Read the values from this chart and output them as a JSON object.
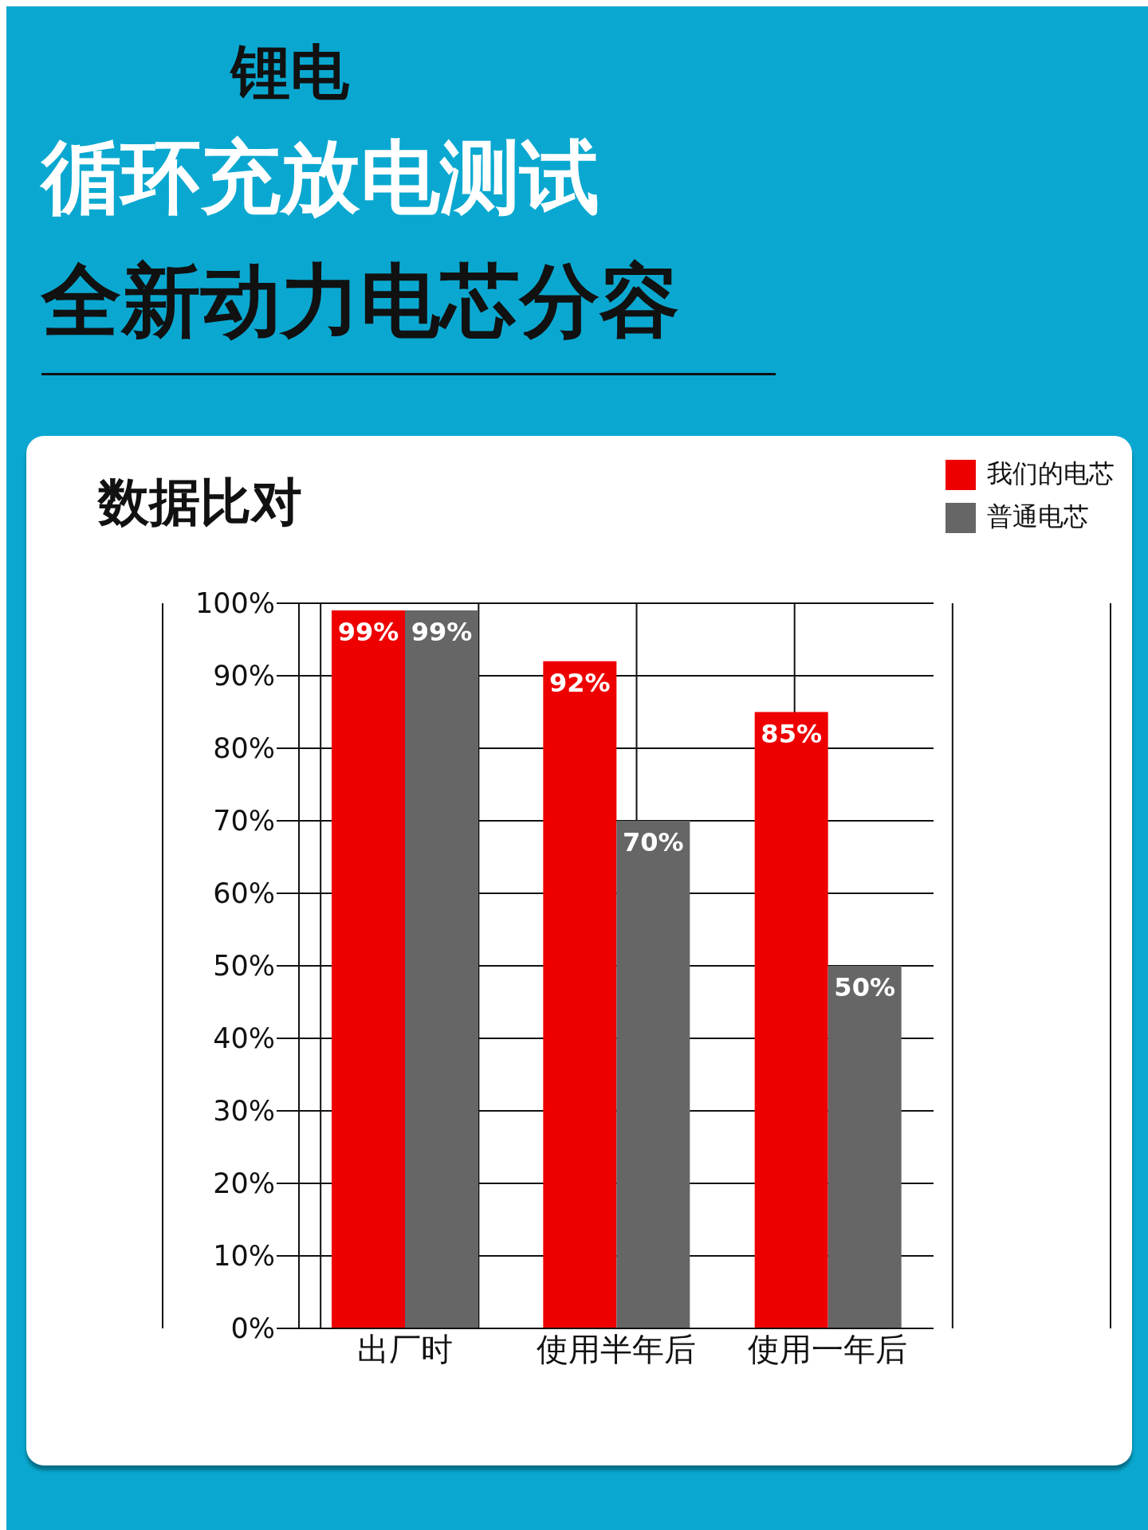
{
  "chart_data": {
    "type": "bar",
    "title": "数据比对",
    "annotations": [
      "锂电",
      "循环充放电测试",
      "全新动力电芯分容"
    ],
    "categories": [
      "出厂时",
      "使用半年后",
      "使用一年后"
    ],
    "series": [
      {
        "name": "我们的电芯",
        "color": "#ee0000",
        "values": [
          99,
          92,
          85
        ],
        "value_labels": [
          "99%",
          "92%",
          "85%"
        ]
      },
      {
        "name": "普通电芯",
        "color": "#666666",
        "values": [
          99,
          70,
          50
        ],
        "value_labels": [
          "99%",
          "70%",
          "50%"
        ]
      }
    ],
    "ylim": [
      0,
      100
    ],
    "yticks": [
      {
        "value": 0,
        "label": "0%"
      },
      {
        "value": 10,
        "label": "10%"
      },
      {
        "value": 20,
        "label": "20%"
      },
      {
        "value": 30,
        "label": "30%"
      },
      {
        "value": 40,
        "label": "40%"
      },
      {
        "value": 50,
        "label": "50%"
      },
      {
        "value": 60,
        "label": "60%"
      },
      {
        "value": 70,
        "label": "70%"
      },
      {
        "value": 80,
        "label": "80%"
      },
      {
        "value": 90,
        "label": "90%"
      },
      {
        "value": 100,
        "label": "100%"
      }
    ],
    "grid": true,
    "legend": "top right"
  }
}
